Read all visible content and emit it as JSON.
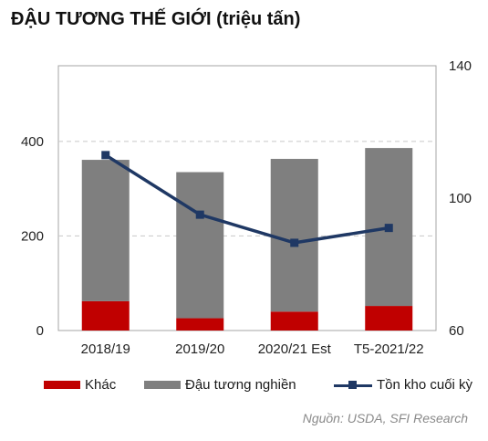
{
  "title": "ĐẬU TƯƠNG THẾ GIỚI (triệu tấn)",
  "source": "Nguồn: USDA, SFI Research",
  "colors": {
    "khac": "#c00000",
    "nghien": "#7f7f7f",
    "ton_kho": "#1f3864",
    "grid": "#c8c8c8",
    "frame": "#a6a6a6"
  },
  "chart_data": {
    "type": "bar",
    "stacked": true,
    "categories": [
      "2018/19",
      "2019/20",
      "2020/21 Est",
      "T5-2021/22"
    ],
    "series": [
      {
        "name": "Khác",
        "axis": "left",
        "values": [
          62,
          26,
          40,
          52
        ]
      },
      {
        "name": "Đậu tương nghiền",
        "axis": "left",
        "values": [
          299,
          309,
          323,
          334
        ]
      },
      {
        "name": "Tồn kho cuối kỳ",
        "axis": "right",
        "type": "line",
        "values": [
          113,
          95,
          86.5,
          91
        ]
      }
    ],
    "y_left": {
      "ylim": [
        0,
        560
      ],
      "ticks": [
        0,
        200,
        400
      ]
    },
    "y_right": {
      "ylim": [
        60,
        140
      ],
      "ticks": [
        60,
        100,
        140
      ]
    },
    "grid": true,
    "legend": "bottom"
  }
}
